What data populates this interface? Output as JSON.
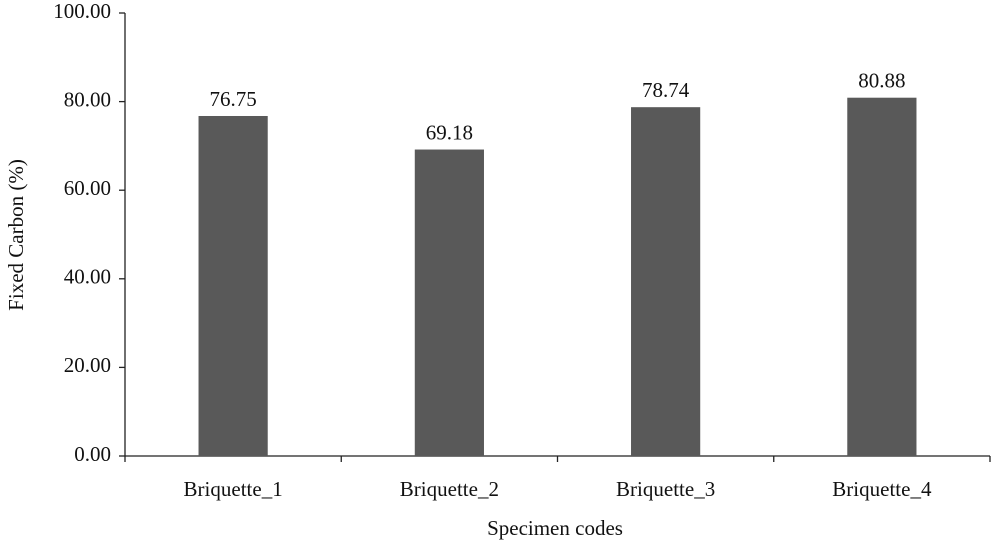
{
  "chart_data": {
    "type": "bar",
    "x_label": "Specimen codes",
    "y_label": "Fixed Carbon (%)",
    "categories": [
      "Briquette_1",
      "Briquette_2",
      "Briquette_3",
      "Briquette_4"
    ],
    "values": [
      76.75,
      69.18,
      78.74,
      80.88
    ],
    "color": "#595959",
    "ylim": [
      0,
      100
    ],
    "yticks": [
      {
        "value": 0,
        "label": "0.00"
      },
      {
        "value": 20,
        "label": "20.00"
      },
      {
        "value": 40,
        "label": "40.00"
      },
      {
        "value": 60,
        "label": "60.00"
      },
      {
        "value": 80,
        "label": "80.00"
      },
      {
        "value": 100,
        "label": "100.00"
      }
    ],
    "grid": false
  }
}
